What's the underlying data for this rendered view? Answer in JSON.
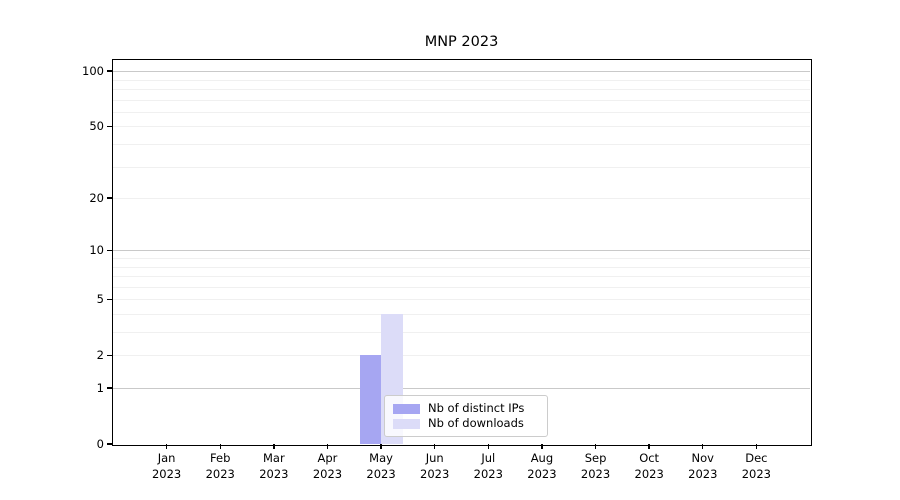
{
  "chart_data": {
    "type": "bar",
    "title": "MNP 2023",
    "x_ticks": [
      {
        "month": "Jan",
        "year": "2023"
      },
      {
        "month": "Feb",
        "year": "2023"
      },
      {
        "month": "Mar",
        "year": "2023"
      },
      {
        "month": "Apr",
        "year": "2023"
      },
      {
        "month": "May",
        "year": "2023"
      },
      {
        "month": "Jun",
        "year": "2023"
      },
      {
        "month": "Jul",
        "year": "2023"
      },
      {
        "month": "Aug",
        "year": "2023"
      },
      {
        "month": "Sep",
        "year": "2023"
      },
      {
        "month": "Oct",
        "year": "2023"
      },
      {
        "month": "Nov",
        "year": "2023"
      },
      {
        "month": "Dec",
        "year": "2023"
      }
    ],
    "series": [
      {
        "name": "Nb of distinct IPs",
        "color": "#a6a6f2",
        "values": [
          0,
          0,
          0,
          0,
          2,
          0,
          0,
          0,
          0,
          0,
          0,
          0
        ]
      },
      {
        "name": "Nb of downloads",
        "color": "#dcdcf8",
        "values": [
          0,
          0,
          0,
          0,
          4,
          0,
          0,
          0,
          0,
          0,
          0,
          0
        ]
      }
    ],
    "y_axis": {
      "scale": "log10(1+y)",
      "ticks": [
        0,
        1,
        2,
        5,
        10,
        20,
        50,
        100
      ],
      "max": 115,
      "major_gridlines": [
        1,
        10,
        100
      ],
      "minor_gridlines": [
        2,
        3,
        4,
        5,
        6,
        7,
        8,
        9,
        20,
        30,
        40,
        50,
        60,
        70,
        80,
        90
      ]
    },
    "legend": {
      "position": "lower center",
      "entries": [
        "Nb of distinct IPs",
        "Nb of downloads"
      ]
    },
    "colors": {
      "axis": "#000000",
      "major_grid": "#c9c9c9",
      "minor_grid": "#f0f0f0",
      "background": "#ffffff"
    }
  }
}
